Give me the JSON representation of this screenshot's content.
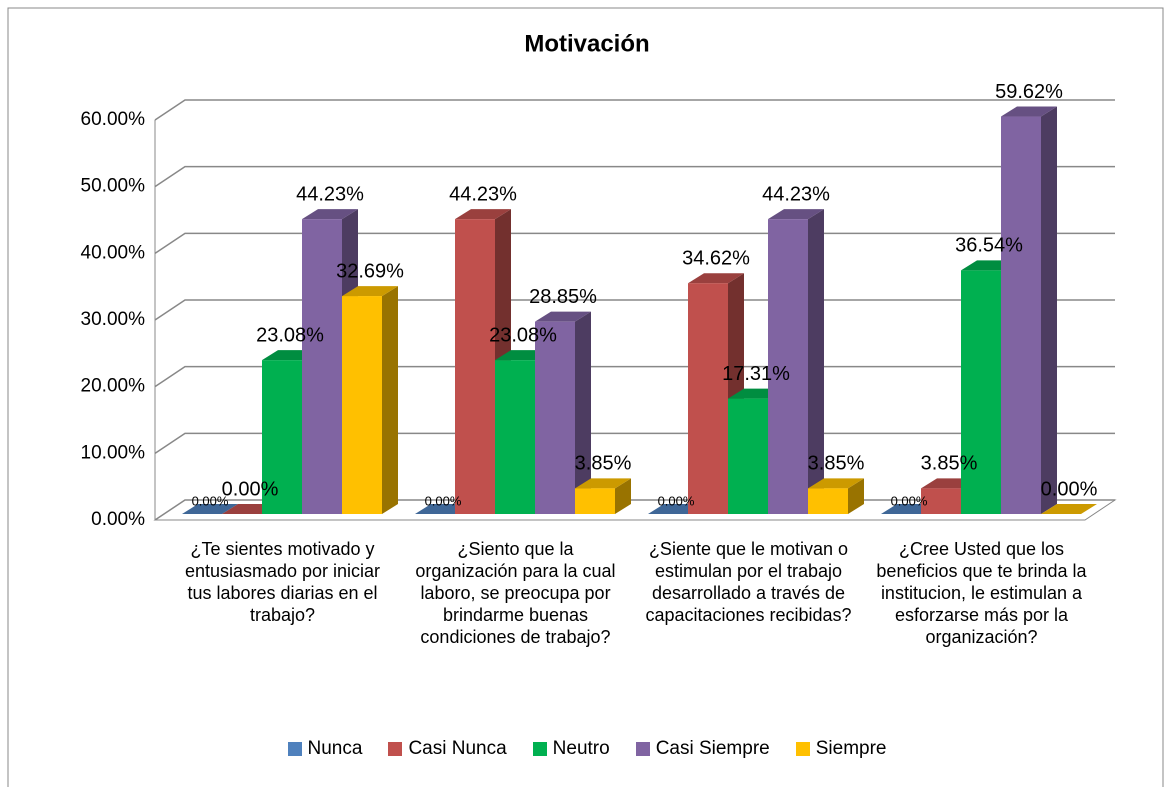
{
  "chart_data": {
    "type": "bar3d",
    "title": "Motivación",
    "categories": [
      "¿Te sientes motivado y entusiasmado por iniciar tus labores diarias en el trabajo?",
      "¿Siento que la organización para la cual laboro, se preocupa por brindarme buenas condiciones de trabajo?",
      "¿Siente que le motivan o estimulan por el trabajo desarrollado a través de capacitaciones recibidas?",
      "¿Cree Usted que los beneficios que te brinda la institucion, le estimulan a esforzarse más por la organización?"
    ],
    "series": [
      {
        "name": "Nunca",
        "color": "#4f81bd",
        "values": [
          0,
          0,
          0,
          0
        ],
        "value_labels": [
          "0.00%",
          "0.00%",
          "0.00%",
          "0.00%"
        ]
      },
      {
        "name": "Casi Nunca",
        "color": "#c0504d",
        "values": [
          0,
          44.23,
          34.62,
          3.85
        ],
        "value_labels": [
          "0.00%",
          "44.23%",
          "34.62%",
          "3.85%"
        ]
      },
      {
        "name": "Neutro",
        "color": "#00b050",
        "values": [
          23.08,
          23.08,
          17.31,
          36.54
        ],
        "value_labels": [
          "23.08%",
          "23.08%",
          "17.31%",
          "36.54%"
        ]
      },
      {
        "name": "Casi Siempre",
        "color": "#8064a2",
        "values": [
          44.23,
          28.85,
          44.23,
          59.62
        ],
        "value_labels": [
          "44.23%",
          "28.85%",
          "44.23%",
          "59.62%"
        ]
      },
      {
        "name": "Siempre",
        "color": "#ffc000",
        "values": [
          32.69,
          3.85,
          3.85,
          0
        ],
        "value_labels": [
          "32.69%",
          "3.85%",
          "3.85%",
          "0.00%"
        ]
      }
    ],
    "ylim": [
      0,
      60
    ],
    "yticks": [
      {
        "value": 0,
        "label": "0.00%"
      },
      {
        "value": 10,
        "label": "10.00%"
      },
      {
        "value": 20,
        "label": "20.00%"
      },
      {
        "value": 30,
        "label": "30.00%"
      },
      {
        "value": 40,
        "label": "40.00%"
      },
      {
        "value": 50,
        "label": "50.00%"
      },
      {
        "value": 60,
        "label": "60.00%"
      }
    ],
    "grid": true,
    "legend": "bottom"
  }
}
